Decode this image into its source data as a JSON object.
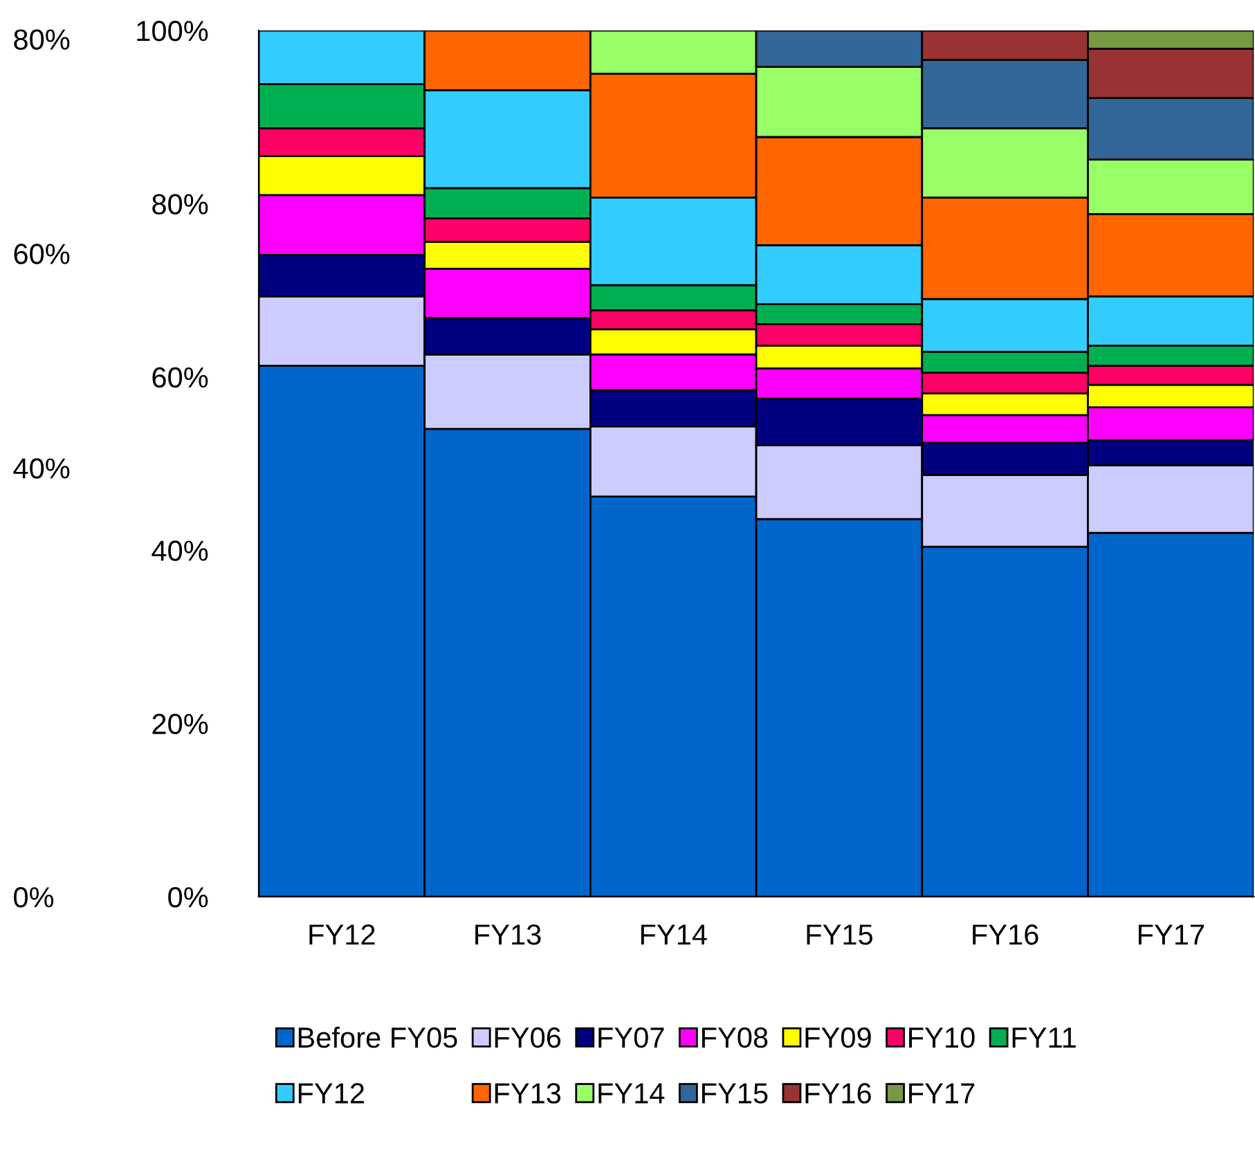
{
  "chart_data": {
    "type": "bar",
    "stacked": true,
    "categories": [
      "FY12",
      "FY13",
      "FY14",
      "FY15",
      "FY16",
      "FY17"
    ],
    "series": [
      {
        "name": "Before FY05",
        "color": "#0066cc",
        "values": [
          61.3,
          54.0,
          46.2,
          43.6,
          40.4,
          42.0
        ]
      },
      {
        "name": "FY06",
        "color": "#ccccff",
        "values": [
          8.0,
          8.6,
          8.1,
          8.5,
          8.3,
          7.8
        ]
      },
      {
        "name": "FY07",
        "color": "#000080",
        "values": [
          4.8,
          4.2,
          4.2,
          5.4,
          3.7,
          2.9
        ]
      },
      {
        "name": "FY08",
        "color": "#ff00ff",
        "values": [
          6.9,
          5.7,
          4.1,
          3.5,
          3.2,
          3.8
        ]
      },
      {
        "name": "FY09",
        "color": "#ffff00",
        "values": [
          4.5,
          3.1,
          2.9,
          2.6,
          2.5,
          2.6
        ]
      },
      {
        "name": "FY10",
        "color": "#ff0066",
        "values": [
          3.2,
          2.7,
          2.2,
          2.5,
          2.4,
          2.2
        ]
      },
      {
        "name": "FY11",
        "color": "#00b050",
        "values": [
          5.1,
          3.5,
          2.9,
          2.3,
          2.4,
          2.3
        ]
      },
      {
        "name": "FY12",
        "color": "#33ccff",
        "values": [
          6.2,
          11.3,
          10.1,
          6.8,
          6.1,
          5.7
        ]
      },
      {
        "name": "FY13",
        "color": "#ff6600",
        "values": [
          null,
          6.9,
          14.3,
          12.5,
          11.7,
          9.5
        ]
      },
      {
        "name": "FY14",
        "color": "#99ff66",
        "values": [
          null,
          null,
          5.0,
          8.1,
          8.0,
          6.3
        ]
      },
      {
        "name": "FY15",
        "color": "#336699",
        "values": [
          null,
          null,
          null,
          4.2,
          7.9,
          7.1
        ]
      },
      {
        "name": "FY16",
        "color": "#993333",
        "values": [
          null,
          null,
          null,
          null,
          3.4,
          5.7
        ]
      },
      {
        "name": "FY17",
        "color": "#779944",
        "values": [
          null,
          null,
          null,
          null,
          null,
          2.1
        ]
      }
    ],
    "ylim": [
      0,
      100
    ],
    "yticks": [
      {
        "value": 0,
        "label": "0%"
      },
      {
        "value": 20,
        "label": "20%"
      },
      {
        "value": 40,
        "label": "40%"
      },
      {
        "value": 60,
        "label": "60%"
      },
      {
        "value": 80,
        "label": "80%"
      },
      {
        "value": 100,
        "label": "100%"
      }
    ],
    "y2lim": [
      0,
      80.8
    ],
    "y2ticks": [
      {
        "value": 0,
        "label": "0%"
      },
      {
        "value": 40,
        "label": "40%"
      },
      {
        "value": 60,
        "label": "60%"
      },
      {
        "value": 80,
        "label": "80%"
      }
    ],
    "grid": false,
    "legend": "bottom"
  }
}
